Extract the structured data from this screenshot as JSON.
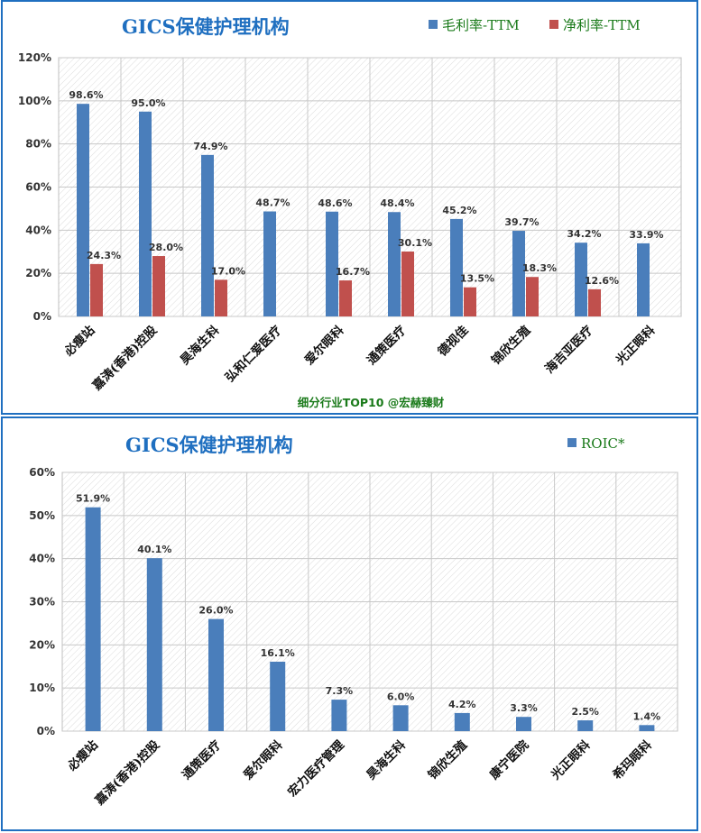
{
  "chart_data": [
    {
      "type": "bar",
      "title": "GICS保健护理机构",
      "categories": [
        "必瘦站",
        "嘉涛(香港)控股",
        "昊海生科",
        "弘和仁爱医疗",
        "爱尔眼科",
        "通策医疗",
        "德视佳",
        "锦欣生殖",
        "海吉亚医疗",
        "光正眼科"
      ],
      "series": [
        {
          "name": "毛利率-TTM",
          "color": "#4a7ebb",
          "values": [
            98.6,
            95.0,
            74.9,
            48.7,
            48.6,
            48.4,
            45.2,
            39.7,
            34.2,
            33.9
          ],
          "labels": [
            "98.6%",
            "95.0%",
            "74.9%",
            "48.7%",
            "48.6%",
            "48.4%",
            "45.2%",
            "39.7%",
            "34.2%",
            "33.9%"
          ]
        },
        {
          "name": "净利率-TTM",
          "color": "#c0504d",
          "values": [
            24.3,
            28.0,
            17.0,
            null,
            16.7,
            30.1,
            13.5,
            18.3,
            12.6,
            null
          ],
          "labels": [
            "24.3%",
            "28.0%",
            "17.0%",
            "",
            "16.7%",
            "30.1%",
            "13.5%",
            "18.3%",
            "12.6%",
            ""
          ]
        }
      ],
      "ylim": [
        0,
        120
      ],
      "yticks": [
        "0%",
        "20%",
        "40%",
        "60%",
        "80%",
        "100%",
        "120%"
      ],
      "legend": "top-right",
      "grid": true,
      "footer": "细分行业TOP10 @宏赫臻财"
    },
    {
      "type": "bar",
      "title": "GICS保健护理机构",
      "categories": [
        "必瘦站",
        "嘉涛(香港)控股",
        "通策医疗",
        "爱尔眼科",
        "宏力医疗管理",
        "昊海生科",
        "锦欣生殖",
        "康宁医院",
        "光正眼科",
        "希玛眼科"
      ],
      "series": [
        {
          "name": "ROIC*",
          "color": "#4a7ebb",
          "values": [
            51.9,
            40.1,
            26.0,
            16.1,
            7.3,
            6.0,
            4.2,
            3.3,
            2.5,
            1.4
          ],
          "labels": [
            "51.9%",
            "40.1%",
            "26.0%",
            "16.1%",
            "7.3%",
            "6.0%",
            "4.2%",
            "3.3%",
            "2.5%",
            "1.4%"
          ]
        }
      ],
      "ylim": [
        0,
        60
      ],
      "yticks": [
        "0%",
        "10%",
        "20%",
        "30%",
        "40%",
        "50%",
        "60%"
      ],
      "legend": "top-right",
      "grid": true
    }
  ]
}
